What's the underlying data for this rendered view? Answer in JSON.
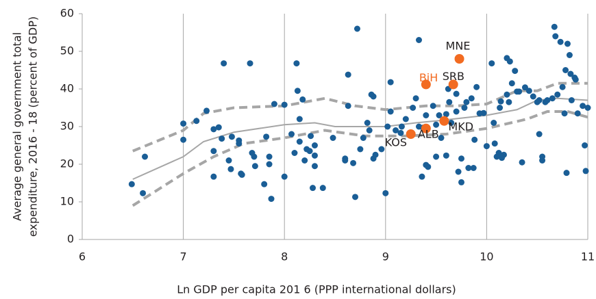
{
  "chart_data": {
    "type": "scatter",
    "x_label": "Ln GDP per capita 201 6 (PPP international dollars)",
    "y_label": [
      "Average general government total",
      "expenditure, 2016 - 18 (percent of GDP)"
    ],
    "xlim": [
      6,
      11
    ],
    "ylim": [
      0,
      60
    ],
    "xticks": [
      6,
      7,
      8,
      9,
      10,
      11
    ],
    "yticks": [
      0,
      10,
      20,
      30,
      40,
      50,
      60
    ],
    "grid": "vertical",
    "series": [
      {
        "type": "scatter",
        "color": "#1a5e96",
        "x": [
          6.49,
          6.6,
          6.62,
          7.0,
          7.0,
          7.13,
          7.23,
          7.3,
          7.3,
          7.3,
          7.35,
          7.38,
          7.4,
          7.45,
          7.47,
          7.48,
          7.55,
          7.57,
          7.58,
          7.55,
          7.66,
          7.68,
          7.7,
          7.71,
          7.8,
          7.82,
          7.85,
          7.85,
          7.87,
          7.9,
          8.0,
          8.0,
          8.07,
          8.1,
          8.12,
          8.13,
          8.15,
          8.15,
          8.18,
          8.2,
          8.22,
          8.25,
          8.26,
          8.28,
          8.3,
          8.3,
          8.3,
          8.38,
          8.48,
          8.6,
          8.6,
          8.63,
          8.63,
          8.68,
          8.7,
          8.72,
          8.75,
          8.78,
          8.82,
          8.84,
          8.86,
          8.88,
          8.88,
          8.9,
          8.96,
          9.0,
          9.02,
          9.05,
          9.05,
          9.1,
          9.15,
          9.16,
          9.2,
          9.27,
          9.3,
          9.33,
          9.33,
          9.36,
          9.37,
          9.4,
          9.4,
          9.42,
          9.47,
          9.5,
          9.5,
          9.53,
          9.55,
          9.6,
          9.6,
          9.62,
          9.63,
          9.65,
          9.7,
          9.7,
          9.72,
          9.75,
          9.75,
          9.78,
          9.8,
          9.82,
          9.85,
          9.87,
          9.88,
          9.9,
          9.93,
          9.97,
          10.0,
          10.05,
          10.07,
          10.08,
          10.1,
          10.12,
          10.13,
          10.14,
          10.15,
          10.17,
          10.2,
          10.2,
          10.22,
          10.23,
          10.25,
          10.28,
          10.3,
          10.32,
          10.35,
          10.38,
          10.42,
          10.46,
          10.5,
          10.52,
          10.52,
          10.55,
          10.55,
          10.58,
          10.6,
          10.65,
          10.67,
          10.68,
          10.7,
          10.73,
          10.75,
          10.77,
          10.78,
          10.79,
          10.8,
          10.82,
          10.83,
          10.84,
          10.87,
          10.88,
          10.9,
          10.95,
          10.97,
          10.98,
          11.0
        ],
        "values": [
          14.7,
          12.3,
          22,
          30.8,
          26.5,
          31.5,
          34.2,
          16.7,
          23.5,
          29.3,
          29.8,
          26.8,
          46.8,
          21,
          18.7,
          27.3,
          26.3,
          17.5,
          17.2,
          25.5,
          46.8,
          23,
          22,
          19.5,
          14.7,
          27.3,
          22,
          20,
          10.8,
          36,
          35.8,
          16.7,
          28,
          23,
          46.8,
          39.5,
          32,
          26,
          37.2,
          21,
          24,
          23.5,
          27.5,
          13.7,
          22.3,
          25,
          19.5,
          13.7,
          27,
          21,
          21.5,
          35.5,
          43.8,
          20.3,
          11.3,
          56,
          24,
          27,
          31,
          29,
          38.5,
          38,
          21.5,
          22.5,
          24,
          12.3,
          30,
          34,
          41.8,
          29,
          28.3,
          30,
          32,
          35,
          37.5,
          53,
          30,
          16.7,
          29.7,
          19.8,
          33,
          19.3,
          35.5,
          22,
          30.5,
          33,
          27,
          33.3,
          22.3,
          40,
          36.5,
          31,
          34,
          38.7,
          18,
          15.2,
          21.5,
          35,
          36.5,
          19,
          37.5,
          19,
          26.5,
          40.5,
          33.5,
          33.6,
          24.8,
          46.8,
          31,
          25.5,
          22,
          23,
          35,
          36.7,
          21.7,
          22.5,
          48.2,
          38.5,
          36.5,
          47.3,
          41.5,
          44.8,
          39.3,
          39.3,
          20.5,
          40.4,
          39.5,
          38,
          36.5,
          28,
          37,
          21,
          22,
          36.5,
          37,
          37.5,
          56.5,
          54,
          38.5,
          52.5,
          40.5,
          33.5,
          45,
          17.7,
          52,
          49,
          44,
          37,
          43,
          42.5,
          33.5,
          35.5,
          25,
          18.2,
          35
        ]
      },
      {
        "type": "scatter",
        "color": "#f26b21",
        "x": [
          9.25,
          9.4,
          9.58,
          9.4,
          9.67,
          9.73
        ],
        "values": [
          28,
          29.5,
          31.5,
          41.2,
          41.2,
          48
        ],
        "labels": [
          "KOS",
          "ALB",
          "MKD",
          "BiH",
          "SRB",
          "MNE"
        ],
        "label_colors": [
          "#231f20",
          "#231f20",
          "#231f20",
          "#f26b21",
          "#231f20",
          "#231f20"
        ]
      },
      {
        "type": "line",
        "color": "#a6a6a6",
        "style": "solid",
        "x": [
          6.5,
          7,
          7.2,
          7.5,
          8,
          8.3,
          8.5,
          9,
          9.3,
          9.5,
          10,
          10.3,
          10.5,
          10.7,
          11
        ],
        "values": [
          16,
          22,
          26,
          28.5,
          30.5,
          31,
          30,
          30,
          31,
          31.5,
          33,
          34.5,
          37,
          37.5,
          37
        ]
      },
      {
        "type": "line",
        "color": "#a6a6a6",
        "style": "dashed",
        "x": [
          6.5,
          7,
          7.2,
          7.5,
          8,
          8.4,
          8.7,
          9,
          9.4,
          9.7,
          10,
          10.3,
          10.5,
          10.7,
          11
        ],
        "values": [
          23.5,
          29,
          33.5,
          35,
          35.5,
          37.5,
          35.5,
          34.5,
          35.5,
          35.5,
          36,
          39.5,
          39.5,
          41.5,
          41.5
        ]
      },
      {
        "type": "line",
        "color": "#a6a6a6",
        "style": "dashed",
        "x": [
          6.5,
          7,
          7.3,
          7.6,
          8,
          8.4,
          8.8,
          9.2,
          9.6,
          10,
          10.4,
          10.6,
          10.8,
          11
        ],
        "values": [
          9,
          17.5,
          22,
          25.5,
          27,
          29,
          27.5,
          27.5,
          28,
          29.5,
          32,
          34,
          34,
          32.5
        ]
      }
    ]
  }
}
